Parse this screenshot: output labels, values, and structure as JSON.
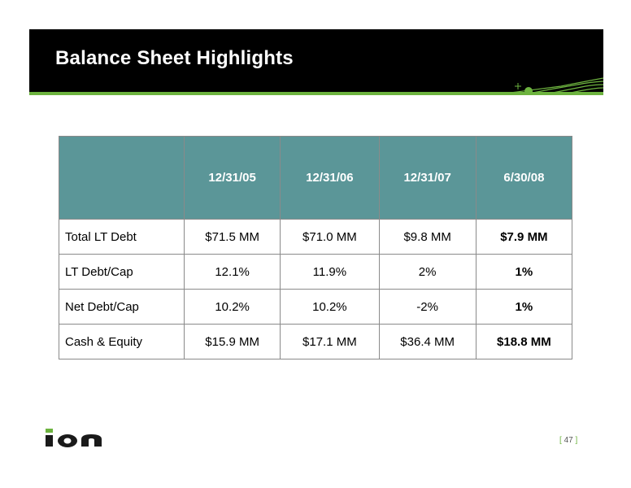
{
  "slide": {
    "title": "Balance Sheet Highlights",
    "page_number": "47",
    "logo_text": "ion"
  },
  "colors": {
    "header_background": "#000000",
    "accent_green": "#6db33f",
    "table_header": "#5b9698"
  },
  "table": {
    "columns": [
      "",
      "12/31/05",
      "12/31/06",
      "12/31/07",
      "6/30/08"
    ],
    "rows": [
      [
        "Total LT Debt",
        "$71.5 MM",
        "$71.0 MM",
        "$9.8 MM",
        "$7.9 MM"
      ],
      [
        "LT Debt/Cap",
        "12.1%",
        "11.9%",
        "2%",
        "1%"
      ],
      [
        "Net Debt/Cap",
        "10.2%",
        "10.2%",
        "-2%",
        "1%"
      ],
      [
        "Cash & Equity",
        "$15.9 MM",
        "$17.1 MM",
        "$36.4 MM",
        "$18.8 MM"
      ]
    ]
  }
}
